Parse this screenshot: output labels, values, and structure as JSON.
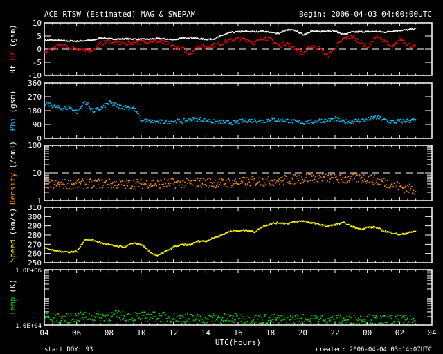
{
  "header": {
    "title": "ACE RTSW (Estimated) MAG & SWEPAM",
    "begin": "Begin: 2006-04-03 04:00:00UTC"
  },
  "footer": {
    "start_doy": "start DOY:  93",
    "created": "created: 2006-04-04 03:14:07UTC",
    "xlabel": "UTC(hours)"
  },
  "chart_data": {
    "type": "scatter",
    "title": "ACE RTSW (Estimated) MAG & SWEPAM",
    "xlabel": "UTC(hours)",
    "x_ticks": [
      "04",
      "06",
      "08",
      "10",
      "12",
      "14",
      "16",
      "18",
      "20",
      "22",
      "00",
      "02",
      "04"
    ],
    "x_range_hours": [
      0,
      24
    ],
    "x_hours": [
      0,
      0.5,
      1,
      1.5,
      2,
      2.5,
      3,
      3.5,
      4,
      4.5,
      5,
      5.5,
      6,
      6.5,
      7,
      7.5,
      8,
      8.5,
      9,
      9.5,
      10,
      10.5,
      11,
      11.5,
      12,
      12.5,
      13,
      13.5,
      14,
      14.5,
      15,
      15.5,
      16,
      16.5,
      17,
      17.5,
      18,
      18.5,
      19,
      19.5,
      20,
      20.5,
      21,
      21.5,
      22,
      22.5,
      23
    ],
    "panels": [
      {
        "id": "bt-bz",
        "ylabel_parts": [
          "Bt",
          "Bz",
          "(gsm)"
        ],
        "colors": [
          "#ffffff",
          "#ff0000",
          "#ffffff"
        ],
        "scale": "linear",
        "ylim": [
          -10,
          10
        ],
        "ticks": [
          "10",
          "5",
          "0",
          "-5",
          "-10"
        ],
        "tick_values": [
          10,
          5,
          0,
          -5,
          -10
        ],
        "dashed_at": 0,
        "series": [
          {
            "name": "Bt",
            "color": "#ffffff",
            "values": [
              3.5,
              3.6,
              3.4,
              3.3,
              3.2,
              3.4,
              3.6,
              4.5,
              4.1,
              4.0,
              4.1,
              4.0,
              3.9,
              4.0,
              4.2,
              4.0,
              3.8,
              4.3,
              4.6,
              4.2,
              3.9,
              4.1,
              5.5,
              6.5,
              6.8,
              6.9,
              6.8,
              7.0,
              6.5,
              6.2,
              7.5,
              7.3,
              5.7,
              7.0,
              6.8,
              7.2,
              7.0,
              5.8,
              6.6,
              6.8,
              6.8,
              6.9,
              6.6,
              7.0,
              7.3,
              7.5,
              8.0
            ]
          },
          {
            "name": "Bz",
            "color": "#ff0000",
            "values": [
              -1.3,
              0.5,
              1.8,
              0.5,
              0.5,
              -0.5,
              0.2,
              2.5,
              3.0,
              2.5,
              2.2,
              2.8,
              2.8,
              3.4,
              3.2,
              2.5,
              1.2,
              0.5,
              -1.5,
              1.5,
              0.8,
              1.8,
              2.5,
              3.6,
              4.0,
              3.8,
              2.5,
              4.5,
              4.0,
              1.5,
              2.5,
              0.5,
              -1.5,
              1.5,
              0.5,
              -2.5,
              1.0,
              4.0,
              4.8,
              3.0,
              1.0,
              4.8,
              3.5,
              0.5,
              4.2,
              2.0,
              0.8
            ]
          }
        ]
      },
      {
        "id": "phi",
        "ylabel_parts": [
          "Phi",
          "(gsm)"
        ],
        "colors": [
          "#00c8ff",
          "#ffffff"
        ],
        "scale": "linear",
        "ylim": [
          0,
          360
        ],
        "ticks": [
          "360",
          "270",
          "180",
          "90",
          "0"
        ],
        "tick_values": [
          360,
          270,
          180,
          90,
          0
        ],
        "series": [
          {
            "name": "Phi",
            "color": "#00c8ff",
            "values": [
              230,
              215,
              195,
              205,
              175,
              240,
              180,
              200,
              235,
              215,
              205,
              200,
              120,
              115,
              110,
              110,
              115,
              115,
              125,
              130,
              120,
              110,
              110,
              105,
              110,
              120,
              120,
              115,
              130,
              120,
              120,
              110,
              105,
              110,
              120,
              120,
              130,
              110,
              115,
              120,
              125,
              140,
              125,
              110,
              115,
              118,
              120
            ]
          }
        ]
      },
      {
        "id": "density",
        "ylabel_parts": [
          "Density",
          "(/cm3)"
        ],
        "colors": [
          "#ff8c00",
          "#ffffff"
        ],
        "scale": "log",
        "ylim": [
          1,
          100
        ],
        "ticks": [
          "100",
          "10",
          "1"
        ],
        "tick_values": [
          100,
          10,
          1
        ],
        "dashed_at": 10,
        "series": [
          {
            "name": "Density",
            "color": "#ff8c00",
            "values": [
              4.2,
              4.0,
              4.1,
              4.0,
              4.0,
              4.2,
              4.1,
              4.3,
              4.2,
              4.2,
              4.0,
              4.1,
              4.2,
              4.3,
              4.3,
              4.4,
              4.4,
              4.5,
              4.5,
              4.6,
              4.7,
              4.6,
              4.5,
              4.6,
              4.8,
              5.0,
              5.2,
              5.1,
              5.4,
              5.6,
              5.9,
              6.2,
              6.5,
              7.0,
              7.2,
              6.8,
              6.5,
              6.2,
              6.4,
              6.8,
              6.5,
              5.8,
              4.8,
              4.0,
              3.2,
              2.8,
              2.5
            ]
          }
        ]
      },
      {
        "id": "speed",
        "ylabel_parts": [
          "Speed",
          "(km/s)"
        ],
        "colors": [
          "#ffff00",
          "#ffffff"
        ],
        "scale": "linear",
        "ylim": [
          250,
          310
        ],
        "ticks": [
          "310",
          "300",
          "290",
          "280",
          "270",
          "260",
          "250"
        ],
        "tick_values": [
          310,
          300,
          290,
          280,
          270,
          260,
          250
        ],
        "series": [
          {
            "name": "Speed",
            "color": "#ffff00",
            "values": [
              267,
              264,
              263,
              262,
              263,
              276,
              275,
              272,
              270,
              268,
              268,
              272,
              270,
              262,
              258,
              263,
              268,
              270,
              270,
              274,
              274,
              278,
              281,
              285,
              285,
              286,
              284,
              290,
              293,
              294,
              293,
              295,
              296,
              294,
              292,
              290,
              292,
              294,
              290,
              287,
              289,
              289,
              285,
              283,
              281,
              283,
              285
            ]
          }
        ]
      },
      {
        "id": "temp",
        "ylabel_parts": [
          "Temp",
          "(K)"
        ],
        "colors": [
          "#00e000",
          "#ffffff"
        ],
        "scale": "log",
        "ylim": [
          10000,
          1000000
        ],
        "ticks": [
          "1.0E+06",
          "1.0E+04"
        ],
        "tick_values": [
          1000000,
          10000
        ],
        "series": [
          {
            "name": "Temp",
            "color": "#00e000",
            "values": [
              20000,
              19000,
              18000,
              19000,
              20000,
              21000,
              21000,
              22000,
              22000,
              23000,
              22000,
              22000,
              21000,
              21000,
              21000,
              20000,
              19000,
              19000,
              18000,
              18000,
              18000,
              19000,
              18000,
              18000,
              18000,
              17000,
              17000,
              18000,
              17000,
              17000,
              16000,
              17000,
              17000,
              16000,
              18000,
              17000,
              16000,
              17000,
              16000,
              17000,
              17000,
              16000,
              16000,
              16000,
              15500,
              15500,
              15500
            ]
          }
        ]
      }
    ]
  }
}
